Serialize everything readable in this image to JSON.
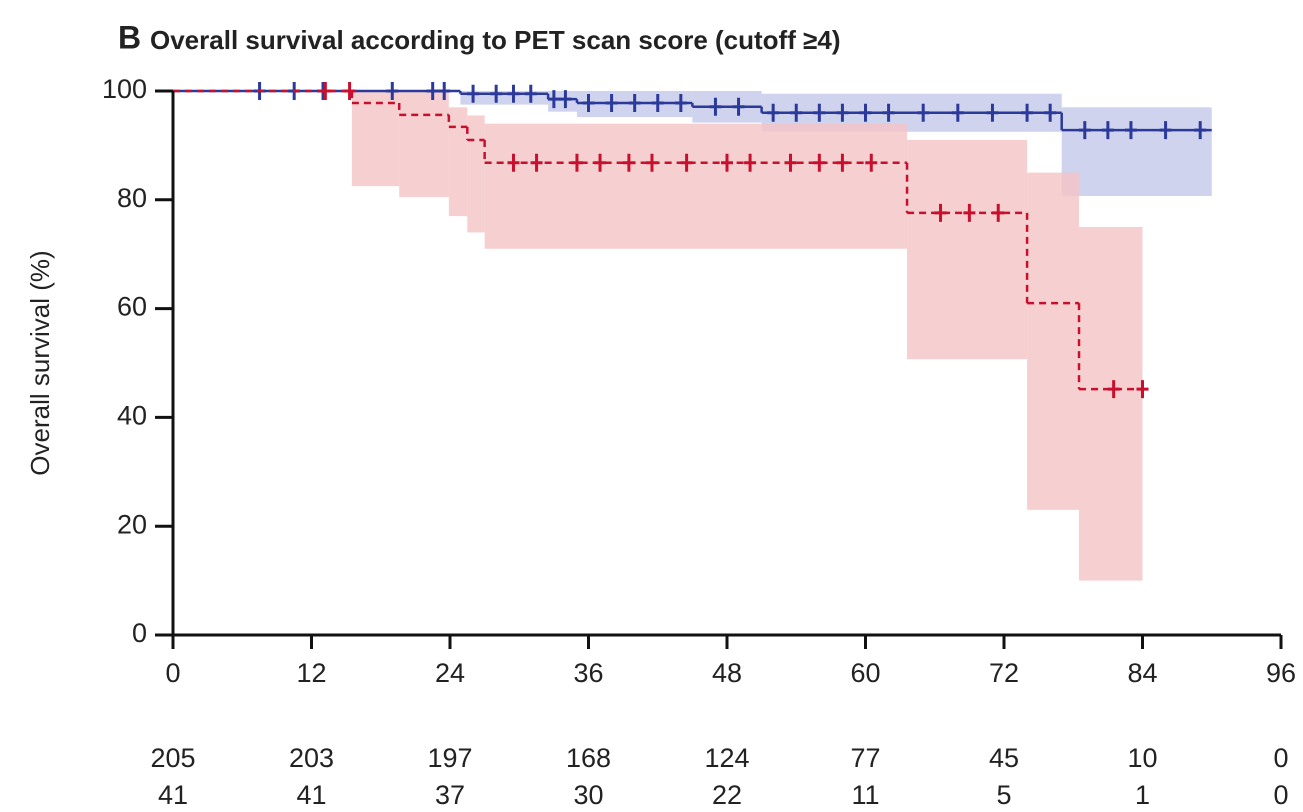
{
  "chart_data": {
    "type": "km-step",
    "panel_label": "B",
    "title": "Overall survival according to PET scan score (cutoff ≥4)",
    "y_label": "Overall survival (%)",
    "xlim": [
      0,
      96
    ],
    "xticks": [
      0,
      12,
      24,
      36,
      48,
      60,
      72,
      84,
      96
    ],
    "ylim": [
      0,
      100
    ],
    "yticks": [
      0,
      20,
      40,
      60,
      80,
      100
    ],
    "series": [
      {
        "color": "#2b3a9a",
        "band_color": "#c3c8ea",
        "dashed": false,
        "x": [
          0,
          24.9,
          32.5,
          35,
          45,
          51,
          77,
          90
        ],
        "values": [
          100,
          99.5,
          98.5,
          97.8,
          97.1,
          96,
          92.8,
          92.8
        ],
        "ci_lower": [
          100,
          97.5,
          96.2,
          95.2,
          94.2,
          92.5,
          80.7,
          80.7
        ],
        "ci_upper": [
          100,
          100,
          100,
          100,
          100,
          99.5,
          97,
          97
        ],
        "censored": {
          "x": [
            7.5,
            10.5,
            13,
            19,
            22.5,
            23.5,
            26,
            28,
            29.5,
            31,
            33,
            34,
            36,
            38,
            40,
            42,
            44,
            47,
            49,
            52,
            54,
            56,
            58,
            60,
            62,
            65,
            68,
            71,
            74,
            76,
            79,
            81,
            83,
            86,
            89
          ],
          "y": [
            100,
            100,
            100,
            100,
            100,
            100,
            99.5,
            99.5,
            99.5,
            99.5,
            98.5,
            98.5,
            97.8,
            97.8,
            97.8,
            97.8,
            97.8,
            97.1,
            97.1,
            96,
            96,
            96,
            96,
            96,
            96,
            96,
            96,
            96,
            96,
            96,
            92.8,
            92.8,
            92.8,
            92.8,
            92.8
          ]
        }
      },
      {
        "color": "#c8102e",
        "band_color": "#f4c4c4",
        "dashed": true,
        "x": [
          0,
          15.5,
          19.6,
          23.9,
          25.5,
          27,
          63.6,
          74,
          78.5,
          84
        ],
        "values": [
          100,
          97.8,
          95.6,
          93.4,
          91,
          86.8,
          77.6,
          61,
          45.2,
          45.2
        ],
        "ci_lower": [
          100,
          82.5,
          80.5,
          77,
          74,
          71,
          50.7,
          23,
          10,
          10
        ],
        "ci_upper": [
          100,
          100,
          100,
          97,
          95.5,
          94,
          91,
          85,
          75,
          75
        ],
        "censored": {
          "x": [
            13.2,
            15.3,
            29.5,
            31.5,
            35,
            37,
            39.5,
            41.5,
            44.5,
            48,
            50,
            53.5,
            56,
            58,
            60.5,
            66.5,
            69,
            71.5,
            81.5,
            84
          ],
          "y": [
            100,
            100,
            86.8,
            86.8,
            86.8,
            86.8,
            86.8,
            86.8,
            86.8,
            86.8,
            86.8,
            86.8,
            86.8,
            86.8,
            86.8,
            77.6,
            77.6,
            77.6,
            45.2,
            45.2
          ]
        }
      }
    ],
    "at_risk": [
      [
        205,
        203,
        197,
        168,
        124,
        77,
        45,
        10,
        0
      ],
      [
        41,
        41,
        37,
        30,
        22,
        11,
        5,
        1,
        0
      ]
    ]
  }
}
